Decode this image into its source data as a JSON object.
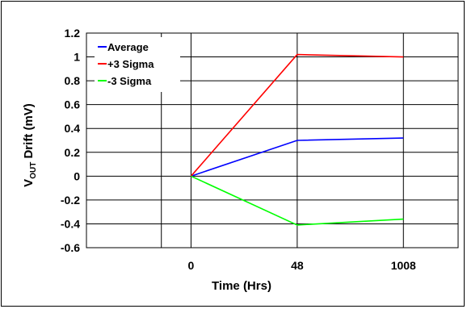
{
  "chart_data": {
    "type": "line",
    "title": "",
    "categories": [
      "0",
      "48",
      "1008"
    ],
    "xlabel": "Time (Hrs)",
    "ylabel": {
      "prefix": "V",
      "subscript": "OUT",
      "suffix": " Drift (mV)"
    },
    "ylim": [
      -0.6,
      1.2
    ],
    "y_ticks": [
      1.2,
      1,
      0.8,
      0.6,
      0.4,
      0.2,
      0,
      -0.2,
      -0.4,
      -0.6
    ],
    "y_tick_labels": [
      "1.2",
      "1",
      "0.8",
      "0.6",
      "0.4",
      "0.2",
      "0",
      "-0.2",
      "-0.4",
      "-0.6"
    ],
    "grid": true,
    "legend_position": "top-left",
    "series": [
      {
        "name": "Average",
        "color": "#0000ff",
        "values": [
          0,
          0.3,
          0.32
        ]
      },
      {
        "name": "+3 Sigma",
        "color": "#ff0000",
        "values": [
          0,
          1.02,
          1.0
        ]
      },
      {
        "name": "-3 Sigma",
        "color": "#00ff00",
        "values": [
          0,
          -0.41,
          -0.36
        ]
      }
    ]
  }
}
